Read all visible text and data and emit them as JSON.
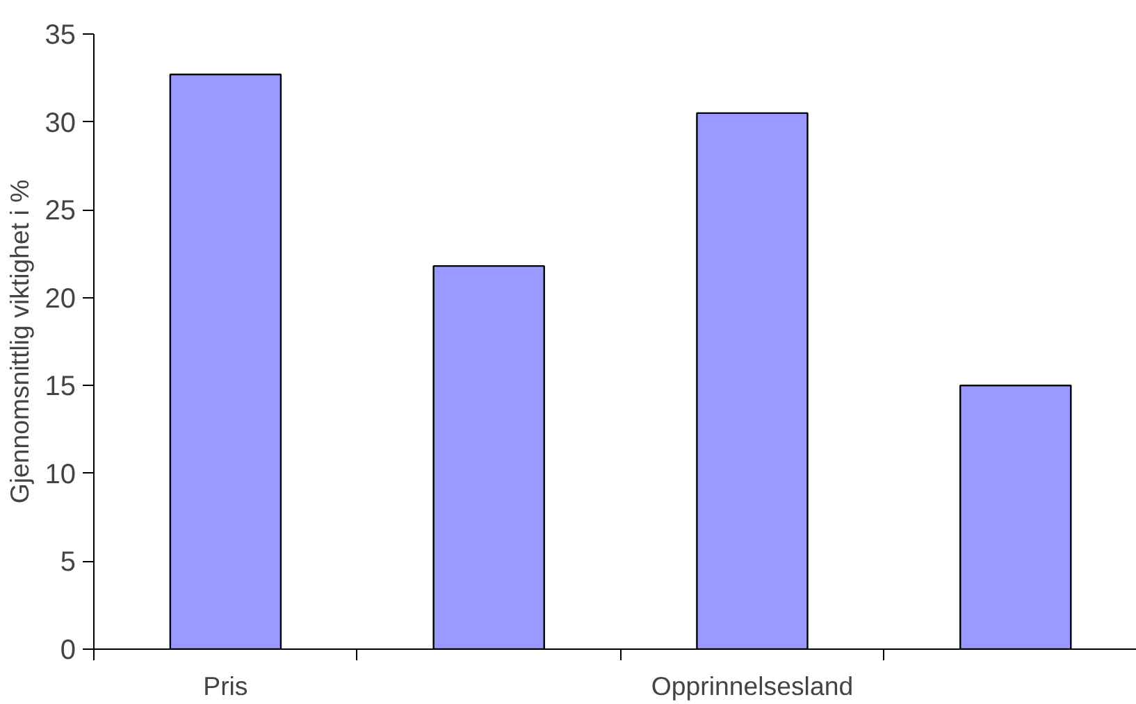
{
  "chart_data": {
    "type": "bar",
    "ylabel": "Gjennomsnittlig viktighet i %",
    "categories": [
      "Pris",
      null,
      "Opprinnelsesland",
      null
    ],
    "values": [
      32.7,
      21.8,
      30.5,
      15.0
    ],
    "color": "#9999ff",
    "ylim": [
      0,
      35
    ],
    "yticks": [
      0,
      5,
      10,
      15,
      20,
      25,
      30,
      35
    ],
    "grid": false
  }
}
